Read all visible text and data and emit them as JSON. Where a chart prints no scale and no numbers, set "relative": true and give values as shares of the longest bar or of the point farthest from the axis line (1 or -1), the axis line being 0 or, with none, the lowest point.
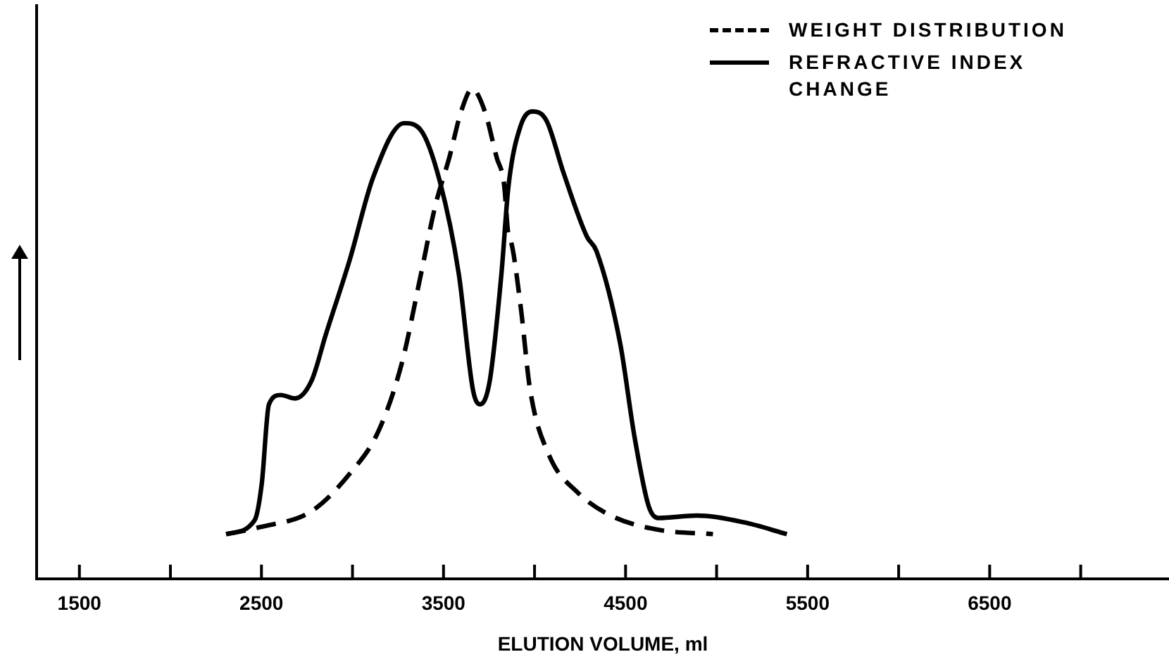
{
  "chart_data": {
    "type": "line",
    "xlabel": "ELUTION VOLUME, ml",
    "relative": true,
    "legend": "top right",
    "grid": false,
    "marker": "none",
    "xlim": [
      1265,
      7485
    ],
    "xticks": [
      1500,
      {
        "value": 2000,
        "label": null
      },
      2500,
      {
        "value": 3000,
        "label": null
      },
      3500,
      {
        "value": 4000,
        "label": null
      },
      4500,
      {
        "value": 5000,
        "label": null
      },
      5500,
      {
        "value": 6000,
        "label": null
      },
      6500,
      {
        "value": 7000,
        "label": null
      }
    ],
    "series": [
      {
        "name": "WEIGHT DISTRIBUTION",
        "color": "#000000",
        "line_style": "dashed",
        "x": [
          2306,
          2488,
          2775,
          2984,
          3141,
          3271,
          3375,
          3454,
          3532,
          3597,
          3657,
          3727,
          3792,
          3832,
          3857,
          3871,
          3924,
          3976,
          4080,
          4237,
          4419,
          4679,
          4980
        ],
        "values": [
          0.091,
          0.105,
          0.138,
          0.214,
          0.3,
          0.44,
          0.62,
          0.76,
          0.86,
          0.954,
          1,
          0.954,
          0.86,
          0.807,
          0.7,
          0.688,
          0.555,
          0.385,
          0.252,
          0.176,
          0.129,
          0.1,
          0.091
        ]
      },
      {
        "name": "REFRACTIVE INDEX CHANGE",
        "color": "#000000",
        "line_style": "solid",
        "x": [
          2306,
          2462,
          2502,
          2541,
          2606,
          2684,
          2775,
          2854,
          2984,
          3115,
          3284,
          3375,
          3480,
          3584,
          3662,
          3701,
          3754,
          3818,
          3857,
          3924,
          3988,
          4066,
          4158,
          4288,
          4340,
          4471,
          4549,
          4627,
          4679,
          4890,
          5151,
          5386
        ],
        "values": [
          0.091,
          0.119,
          0.195,
          0.356,
          0.375,
          0.368,
          0.404,
          0.499,
          0.65,
          0.821,
          0.93,
          0.916,
          0.811,
          0.622,
          0.385,
          0.356,
          0.404,
          0.622,
          0.802,
          0.925,
          0.954,
          0.935,
          0.83,
          0.698,
          0.669,
          0.479,
          0.29,
          0.148,
          0.124,
          0.129,
          0.115,
          0.091
        ]
      }
    ]
  }
}
